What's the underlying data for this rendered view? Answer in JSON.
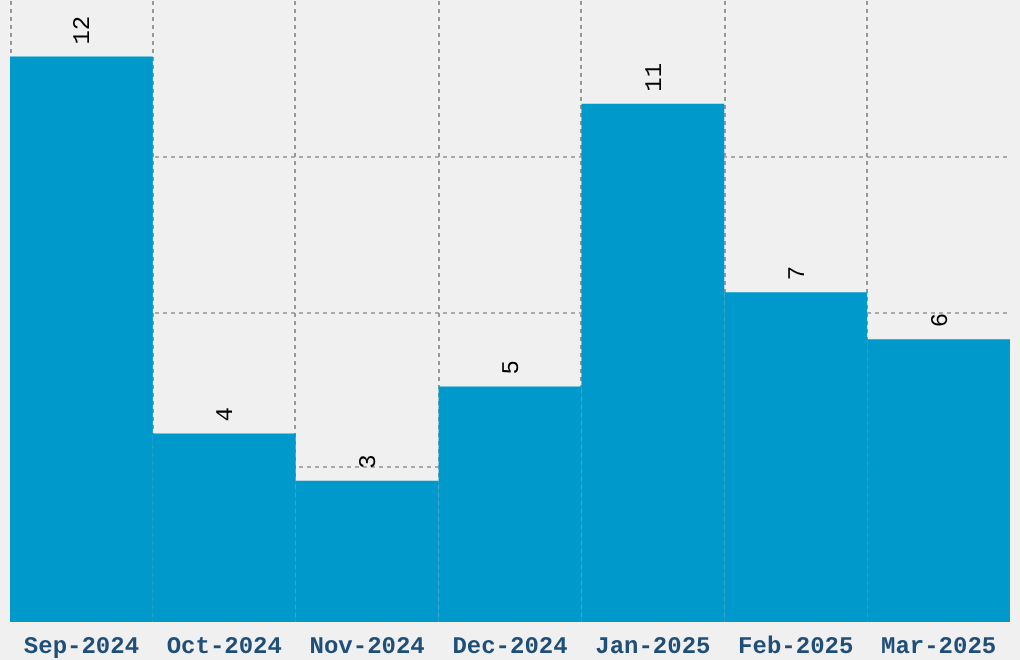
{
  "chart_data": {
    "type": "bar",
    "categories": [
      "Sep-2024",
      "Oct-2024",
      "Nov-2024",
      "Dec-2024",
      "Jan-2025",
      "Feb-2025",
      "Mar-2025"
    ],
    "values": [
      12,
      4,
      3,
      5,
      11,
      7,
      6
    ],
    "color": "#0099cc",
    "data_labels": true,
    "grid": true,
    "ylim": [
      0,
      13.2
    ],
    "yticks": [
      {
        "value": 3.3,
        "label": null
      },
      {
        "value": 6.6,
        "label": null
      },
      {
        "value": 9.9,
        "label": null
      }
    ],
    "tick_labels": "x"
  }
}
